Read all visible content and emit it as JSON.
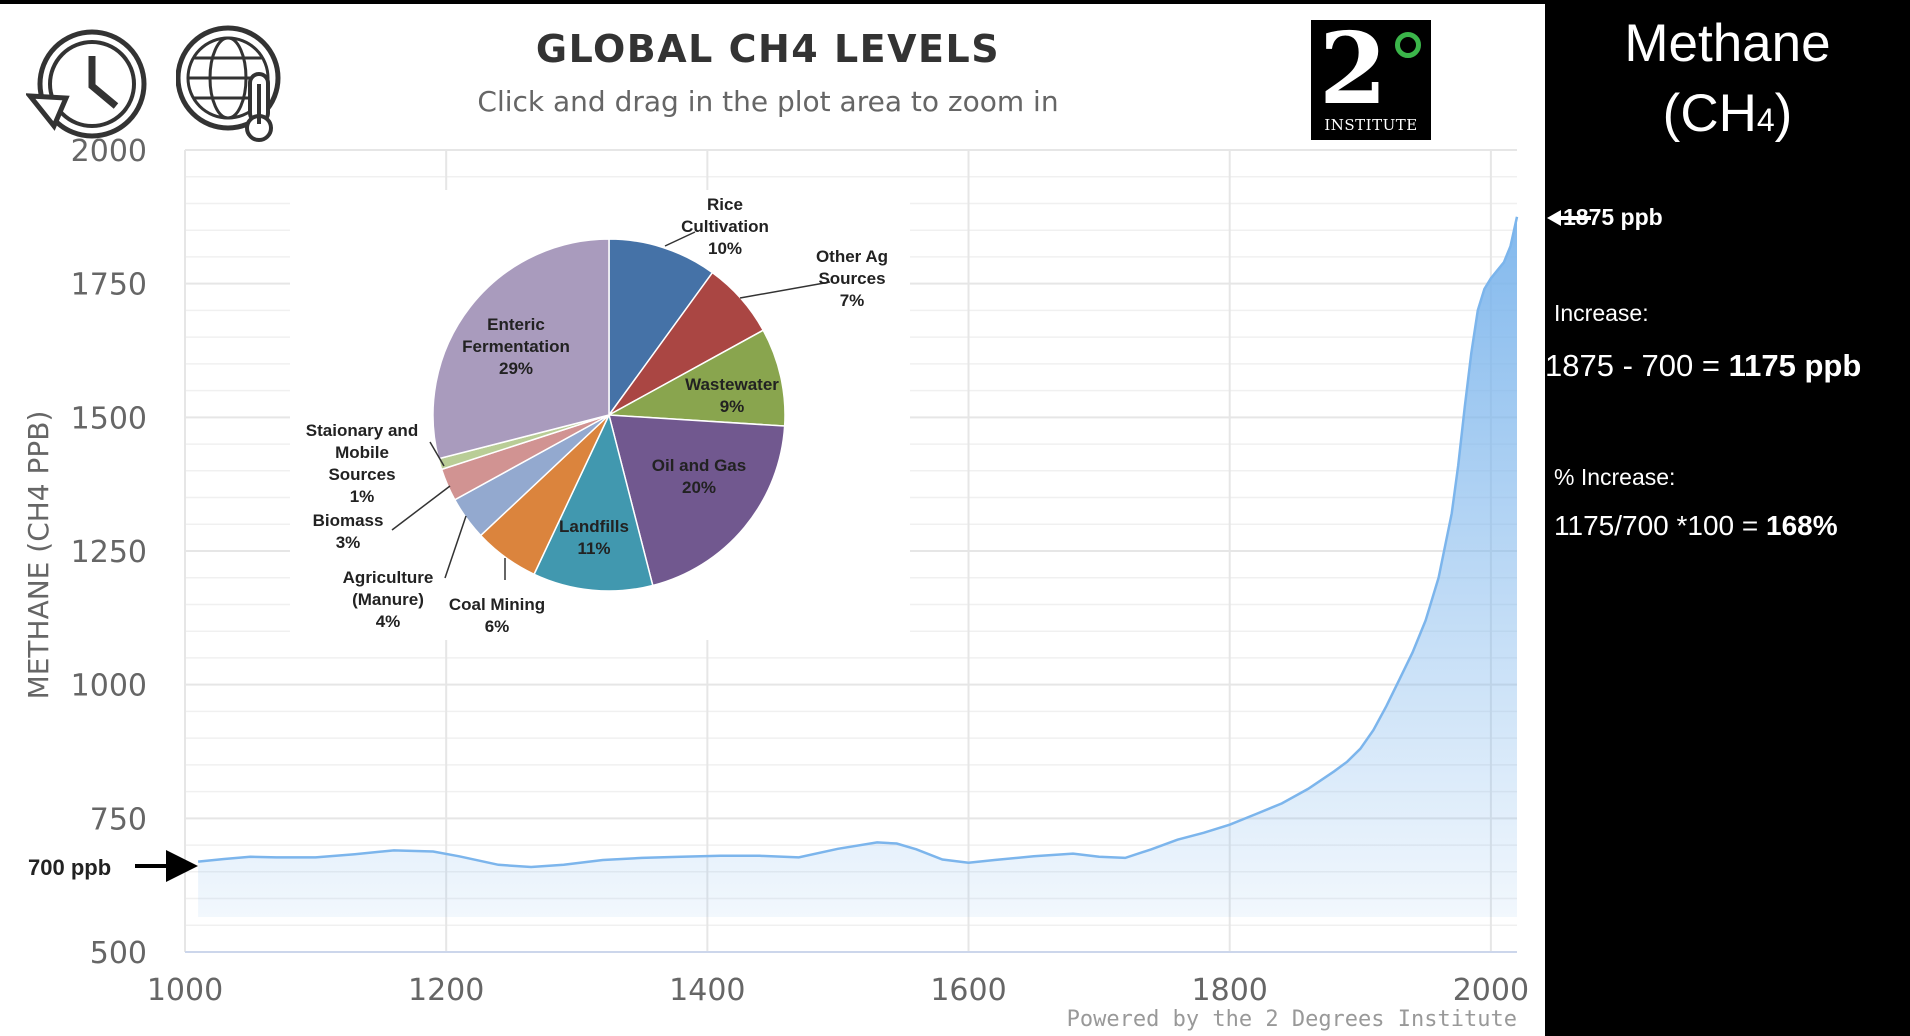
{
  "header": {
    "title": "GLOBAL CH4 LEVELS",
    "subtitle": "Click and drag in the plot area to zoom in",
    "credit": "Powered by the 2 Degrees Institute",
    "logo_text": "INSTITUTE",
    "logo_number": "2"
  },
  "icons": {
    "history": "history-icon",
    "globe_thermometer": "globe-thermometer-icon"
  },
  "annotations": {
    "left_arrow_label": "700 ppb",
    "right_arrow_label": "1875 ppb"
  },
  "right_panel": {
    "title_line1": "Methane",
    "title_line2_prefix": "(CH",
    "title_line2_sub": "4",
    "title_line2_suffix": ")",
    "increase_label": "Increase:",
    "increase_formula": "1875 - 700 = ",
    "increase_result": "1175 ppb",
    "pct_label": "% Increase:",
    "pct_formula": "1175/700 *100 = ",
    "pct_result": "168%"
  },
  "colors": {
    "line": "#7cb5ec",
    "area_top": "#7cb5ec",
    "grid": "#e6e6e6",
    "axis_text": "#666666"
  },
  "chart_data": [
    {
      "type": "area",
      "title": "GLOBAL CH4 LEVELS",
      "xlabel": "",
      "ylabel": "METHANE (CH4 PPB)",
      "xlim": [
        1000,
        2020
      ],
      "ylim": [
        500,
        2000
      ],
      "xticks": [
        1000,
        1200,
        1400,
        1600,
        1800,
        2000
      ],
      "yticks": [
        500,
        750,
        1000,
        1250,
        1500,
        1750,
        2000
      ],
      "grid": true,
      "x": [
        1010,
        1030,
        1050,
        1070,
        1100,
        1130,
        1160,
        1190,
        1210,
        1240,
        1265,
        1290,
        1320,
        1350,
        1380,
        1410,
        1440,
        1470,
        1500,
        1530,
        1545,
        1560,
        1580,
        1600,
        1620,
        1650,
        1680,
        1700,
        1720,
        1740,
        1760,
        1780,
        1800,
        1820,
        1840,
        1860,
        1880,
        1890,
        1900,
        1910,
        1920,
        1930,
        1940,
        1950,
        1960,
        1970,
        1975,
        1980,
        1985,
        1990,
        1995,
        2000,
        2005,
        2010,
        2015,
        2020
      ],
      "values": [
        669,
        674,
        678,
        677,
        677,
        683,
        690,
        688,
        679,
        663,
        659,
        663,
        672,
        676,
        678,
        680,
        680,
        677,
        693,
        705,
        703,
        692,
        673,
        667,
        672,
        679,
        684,
        678,
        676,
        692,
        710,
        723,
        738,
        758,
        778,
        805,
        838,
        856,
        880,
        915,
        960,
        1010,
        1060,
        1120,
        1200,
        1320,
        1410,
        1520,
        1620,
        1700,
        1740,
        1760,
        1775,
        1790,
        1820,
        1875
      ]
    },
    {
      "type": "pie",
      "title": "",
      "slices": [
        {
          "label": "Rice Cultivation",
          "value": 10,
          "color": "#4572a7"
        },
        {
          "label": "Other Ag Sources",
          "value": 7,
          "color": "#aa4643"
        },
        {
          "label": "Wastewater",
          "value": 9,
          "color": "#89a54e"
        },
        {
          "label": "Oil and Gas",
          "value": 20,
          "color": "#71588f"
        },
        {
          "label": "Landfills",
          "value": 11,
          "color": "#4198af"
        },
        {
          "label": "Coal Mining",
          "value": 6,
          "color": "#db843d"
        },
        {
          "label": "Agriculture (Manure)",
          "value": 4,
          "color": "#93a9cf"
        },
        {
          "label": "Biomass",
          "value": 3,
          "color": "#d19392"
        },
        {
          "label": "Staionary and Mobile Sources",
          "value": 1,
          "color": "#b9cd96"
        },
        {
          "label": "Enteric Fermentation",
          "value": 29,
          "color": "#a99bbd"
        }
      ],
      "label_lines": [
        [
          "Rice",
          "Cultivation",
          "10%"
        ],
        [
          "Other Ag",
          "Sources",
          "7%"
        ],
        [
          "Wastewater",
          "9%"
        ],
        [
          "Oil and Gas",
          "20%"
        ],
        [
          "Landfills",
          "11%"
        ],
        [
          "Coal Mining",
          "6%"
        ],
        [
          "Agriculture",
          "(Manure)",
          "4%"
        ],
        [
          "Biomass",
          "3%"
        ],
        [
          "Staionary and",
          "Mobile",
          "Sources",
          "1%"
        ],
        [
          "Enteric",
          "Fermentation",
          "29%"
        ]
      ]
    }
  ]
}
